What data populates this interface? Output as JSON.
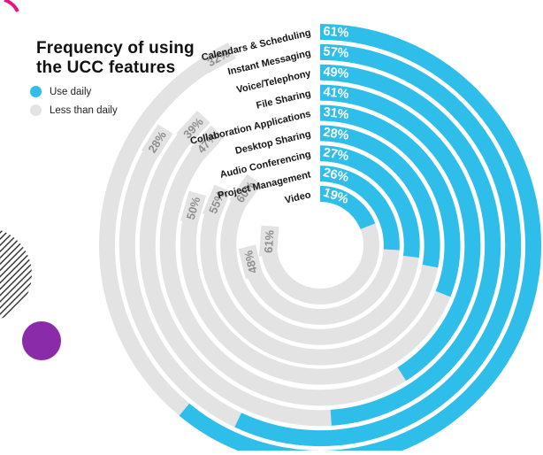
{
  "title": {
    "line1": "Frequency of using",
    "line2": "the UCC features",
    "full": "Frequency of using the UCC features"
  },
  "legend": [
    {
      "label": "Use daily",
      "color": "#2FBEE9"
    },
    {
      "label": "Less than daily",
      "color": "#E3E3E3"
    }
  ],
  "colors": {
    "daily_blue": "#2FBEE9",
    "less_gray": "#E3E3E3",
    "gray_label_text": "#8E8E8E",
    "category_text": "#151515",
    "value_text_on_blue": "#FFFFFF",
    "purple_dot": "#8A2BA9",
    "magenta_accent": "#E8147E",
    "stripe_black": "#1A1A1A"
  },
  "chart_data": {
    "type": "radial-bar",
    "title": "Frequency of using the UCC features",
    "unit": "%",
    "order": "outermost-to-innermost",
    "categories": [
      "Calendars & Scheduling",
      "Instant Messaging",
      "Voice/Telephony",
      "File Sharing",
      "Collaboration Applications",
      "Desktop Sharing",
      "Audio Conferencing",
      "Project Management",
      "Video"
    ],
    "series": [
      {
        "name": "Use daily",
        "color": "#2FBEE9",
        "values": [
          61,
          57,
          49,
          41,
          31,
          28,
          27,
          26,
          19
        ]
      },
      {
        "name": "Less than daily",
        "color": "#E3E3E3",
        "values": [
          32,
          28,
          39,
          47,
          50,
          55,
          60,
          48,
          61
        ]
      }
    ],
    "value_labels_daily": [
      "61%",
      "57%",
      "49%",
      "41%",
      "31%",
      "28%",
      "27%",
      "26%",
      "19%"
    ],
    "value_labels_less": [
      "32%",
      "28%",
      "39%",
      "47%",
      "50%",
      "55%",
      "60%",
      "48%",
      "61%"
    ],
    "angle_start_deg": 0,
    "angle_per_percent_deg": 3.6,
    "legend_position": "top-left"
  },
  "decorations": {
    "striped_circle": "half-visible circle with diagonal hatch stripes at left edge",
    "purple_circle": "solid purple dot below striped circle",
    "magenta_corner": "small magenta arc at top-left corner"
  }
}
